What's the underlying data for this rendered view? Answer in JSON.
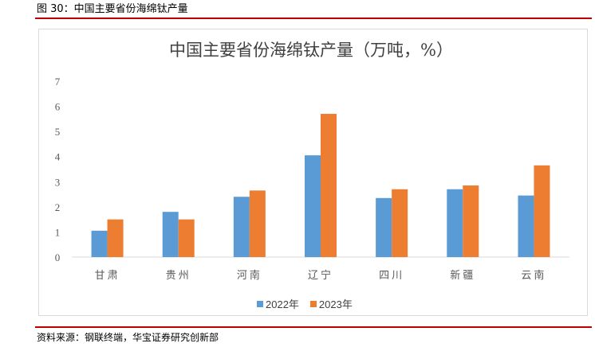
{
  "figure": {
    "caption": "图 30：中国主要省份海绵钛产量",
    "source": "资料来源：钢联终端，华宝证券研究创新部"
  },
  "chart_data": {
    "type": "bar",
    "title": "中国主要省份海绵钛产量（万吨，%）",
    "categories": [
      "甘肃",
      "贵州",
      "河南",
      "辽宁",
      "四川",
      "新疆",
      "云南"
    ],
    "series": [
      {
        "name": "2022年",
        "color": "#5b9bd5",
        "values": [
          1.05,
          1.8,
          2.4,
          4.05,
          2.35,
          2.7,
          2.45
        ]
      },
      {
        "name": "2023年",
        "color": "#ed7d31",
        "values": [
          1.5,
          1.5,
          2.65,
          5.7,
          2.7,
          2.85,
          3.65
        ]
      }
    ],
    "ylim": [
      0,
      7
    ],
    "yticks": [
      0,
      1,
      2,
      3,
      4,
      5,
      6,
      7
    ],
    "grid": false,
    "legend_position": "bottom"
  }
}
